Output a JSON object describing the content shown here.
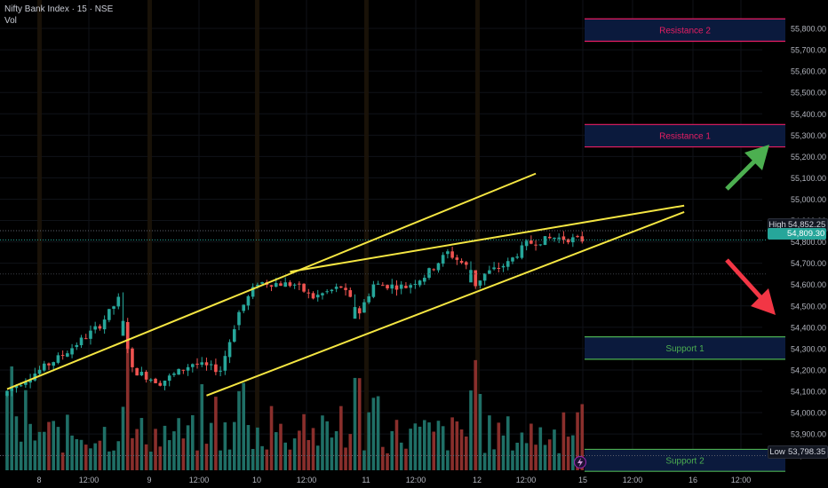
{
  "header": {
    "title": "Nifty Bank Index · 15 · NSE",
    "volume_label": "Vol"
  },
  "colors": {
    "background": "#000000",
    "up": "#26a69a",
    "down": "#ef5350",
    "trendline": "#f5e642",
    "resistance": "#e91e63",
    "support": "#4caf50",
    "zone_fill": "#0b1a3d",
    "arrow_up": "#4caf50",
    "arrow_down": "#f23645"
  },
  "zones": [
    {
      "label": "Resistance 2",
      "kind": "resistance",
      "top": 55845,
      "bottom": 55740
    },
    {
      "label": "Resistance 1",
      "kind": "resistance",
      "top": 55350,
      "bottom": 55245
    },
    {
      "label": "Support 1",
      "kind": "support",
      "top": 54355,
      "bottom": 54250
    },
    {
      "label": "Support 2",
      "kind": "support",
      "top": 53828,
      "bottom": 53725
    }
  ],
  "price_badges": [
    {
      "key": "High",
      "value": "54,852.25"
    },
    {
      "key": "",
      "value": "54,809.30"
    },
    {
      "key": "Low",
      "value": "53,798.35"
    }
  ],
  "chart_data": {
    "type": "candlestick",
    "title": "Nifty Bank Index · 15 · NSE",
    "symbol": "Nifty Bank Index",
    "interval": "15",
    "exchange": "NSE",
    "y_axis": {
      "range": [
        53730,
        55900
      ],
      "ticks": [
        53800,
        53900,
        54000,
        54100,
        54200,
        54300,
        54400,
        54500,
        54600,
        54700,
        54800,
        54900,
        55000,
        55100,
        55200,
        55300,
        55400,
        55500,
        55600,
        55700,
        55800
      ],
      "tick_labels": [
        "53,800.00",
        "53,900.00",
        "54,000.00",
        "54,100.00",
        "54,200.00",
        "54,300.00",
        "54,400.00",
        "54,500.00",
        "54,600.00",
        "54,700.00",
        "54,800.00",
        "54,900.00",
        "55,000.00",
        "55,100.00",
        "55,200.00",
        "55,300.00",
        "55,400.00",
        "55,500.00",
        "55,600.00",
        "55,700.00",
        "55,800.00"
      ],
      "position": "right"
    },
    "x_axis": {
      "tick_labels": [
        "8",
        "12:00",
        "9",
        "12:00",
        "10",
        "12:00",
        "11",
        "12:00",
        "12",
        "12:00",
        "15",
        "12:00",
        "16",
        "12:00"
      ],
      "bars_per_day": 25,
      "bar_count": 125
    },
    "anchors": [
      {
        "i": 0,
        "price": 54100
      },
      {
        "i": 12,
        "price": 54270
      },
      {
        "i": 20,
        "price": 54410
      },
      {
        "i": 24,
        "price": 54530
      },
      {
        "i": 27,
        "price": 54200
      },
      {
        "i": 33,
        "price": 54140
      },
      {
        "i": 40,
        "price": 54230
      },
      {
        "i": 46,
        "price": 54200
      },
      {
        "i": 50,
        "price": 54470
      },
      {
        "i": 54,
        "price": 54610
      },
      {
        "i": 62,
        "price": 54600
      },
      {
        "i": 66,
        "price": 54540
      },
      {
        "i": 72,
        "price": 54590
      },
      {
        "i": 76,
        "price": 54470
      },
      {
        "i": 79,
        "price": 54600
      },
      {
        "i": 86,
        "price": 54590
      },
      {
        "i": 90,
        "price": 54640
      },
      {
        "i": 95,
        "price": 54750
      },
      {
        "i": 100,
        "price": 54670
      },
      {
        "i": 101,
        "price": 54600
      },
      {
        "i": 103,
        "price": 54650
      },
      {
        "i": 108,
        "price": 54700
      },
      {
        "i": 112,
        "price": 54790
      },
      {
        "i": 118,
        "price": 54820
      },
      {
        "i": 124,
        "price": 54809
      }
    ],
    "trendlines": [
      {
        "name": "upper channel",
        "from": {
          "i": 0,
          "price": 54110
        },
        "to": {
          "i": 114,
          "price": 55120
        }
      },
      {
        "name": "wedge top",
        "from": {
          "i": 61,
          "price": 54660
        },
        "to": {
          "i": 146,
          "price": 54970
        }
      },
      {
        "name": "wedge bottom",
        "from": {
          "i": 43,
          "price": 54080
        },
        "to": {
          "i": 146,
          "price": 54940
        }
      }
    ],
    "horizontal_lines": [
      {
        "price": 54852.25,
        "label": "High"
      },
      {
        "price": 54809.3,
        "label": "last"
      }
    ],
    "annotations": [
      "Resistance 2",
      "Resistance 1",
      "Support 1",
      "Support 2"
    ],
    "arrows": [
      {
        "direction": "up",
        "color": "green"
      },
      {
        "direction": "down",
        "color": "red"
      }
    ],
    "grid": true,
    "legend": "none"
  }
}
